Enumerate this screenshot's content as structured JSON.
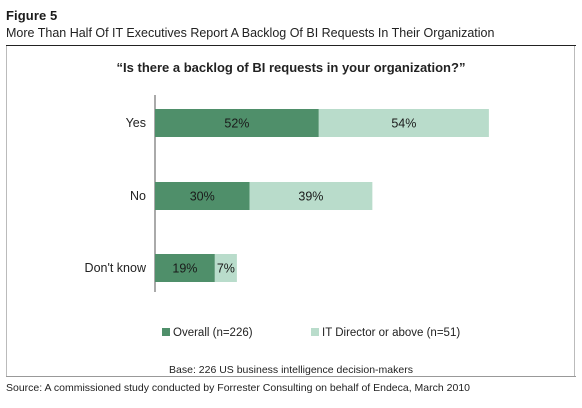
{
  "figure": {
    "label": "Figure 5",
    "title": "More Than Half Of IT Executives Report A Backlog Of BI Requests In Their Organization",
    "base": "Base: 226 US business intelligence decision-makers",
    "source": "Source: A commissioned study conducted by Forrester Consulting on behalf of Endeca, March 2010"
  },
  "chart_data": {
    "type": "bar",
    "orientation": "horizontal",
    "stacked": true,
    "title": "“Is there a backlog of BI requests in your organization?”",
    "categories": [
      "Yes",
      "No",
      "Don't know"
    ],
    "series": [
      {
        "name": "Overall (n=226)",
        "values": [
          52,
          30,
          19
        ],
        "labels": [
          "52%",
          "30%",
          "19%"
        ],
        "color": "#4f8f6a"
      },
      {
        "name": "IT Director or above (n=51)",
        "values": [
          54,
          39,
          7
        ],
        "labels": [
          "54%",
          "39%",
          "7%"
        ],
        "color": "#b9dccb"
      }
    ],
    "unit": "%",
    "grid": false,
    "legend_position": "bottom"
  }
}
